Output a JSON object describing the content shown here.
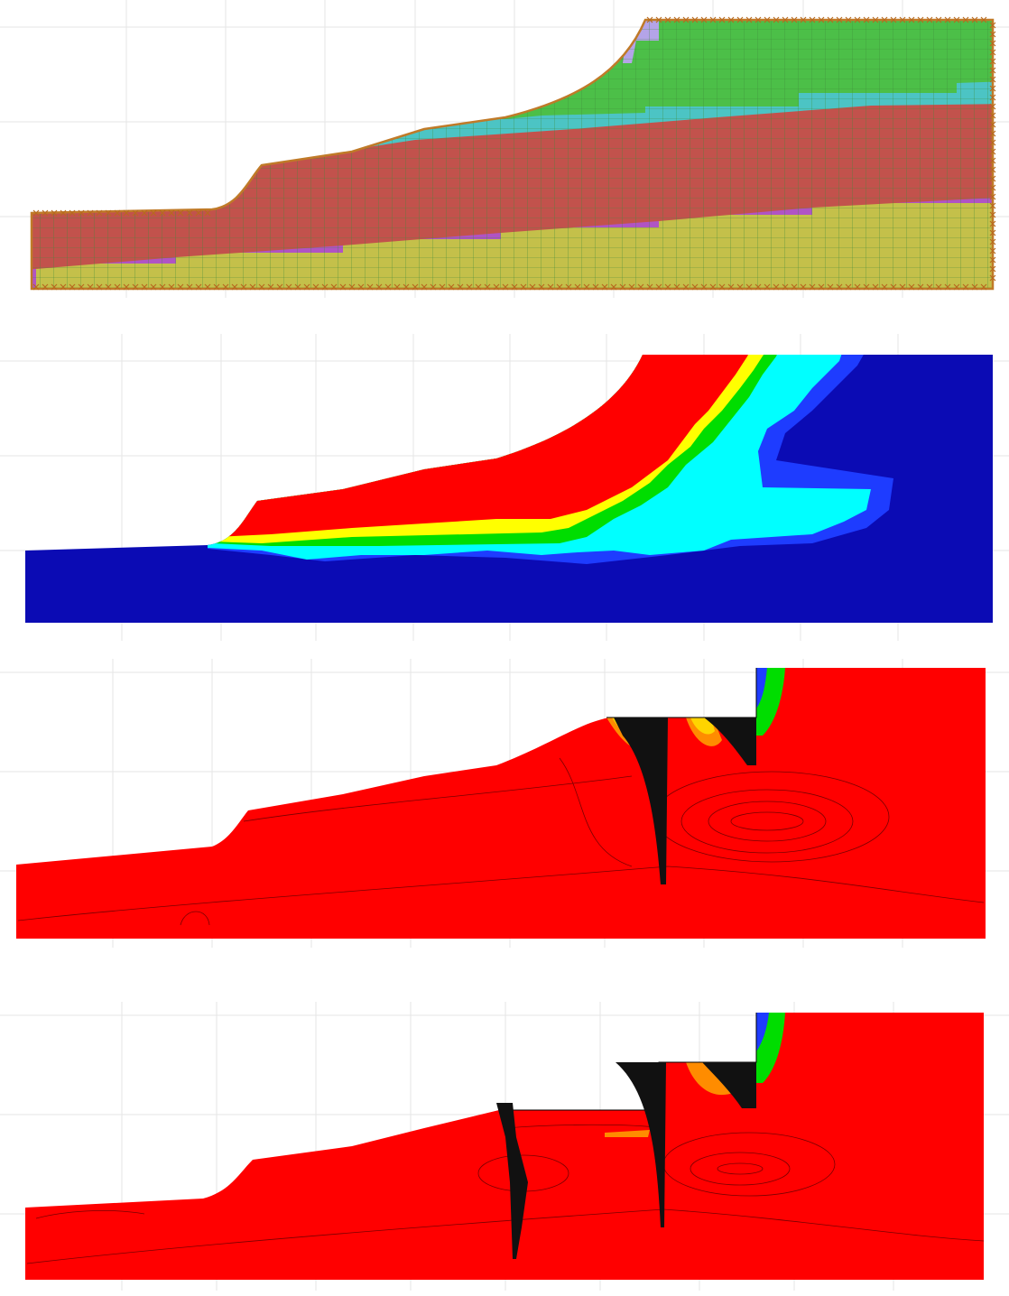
{
  "figure": {
    "panels": [
      {
        "id": "panel-1",
        "kind": "material-layers-mesh"
      },
      {
        "id": "panel-2",
        "kind": "contour-map"
      },
      {
        "id": "panel-3",
        "kind": "contour-with-piles",
        "piles": 2
      },
      {
        "id": "panel-4",
        "kind": "contour-with-piles",
        "piles": 3
      }
    ],
    "colors": {
      "layer_green": "#4cbf48",
      "layer_cyan": "#4cc4c4",
      "layer_red": "#c2524c",
      "layer_purple": "#b054c4",
      "layer_yellow": "#c4c04a",
      "layer_lavender": "#b4a4e8",
      "contour_blue": "#0b0bb4",
      "contour_red": "#ff0000",
      "contour_yellow": "#ffff00",
      "contour_cyan": "#00ffff",
      "pile": "#111111"
    }
  }
}
